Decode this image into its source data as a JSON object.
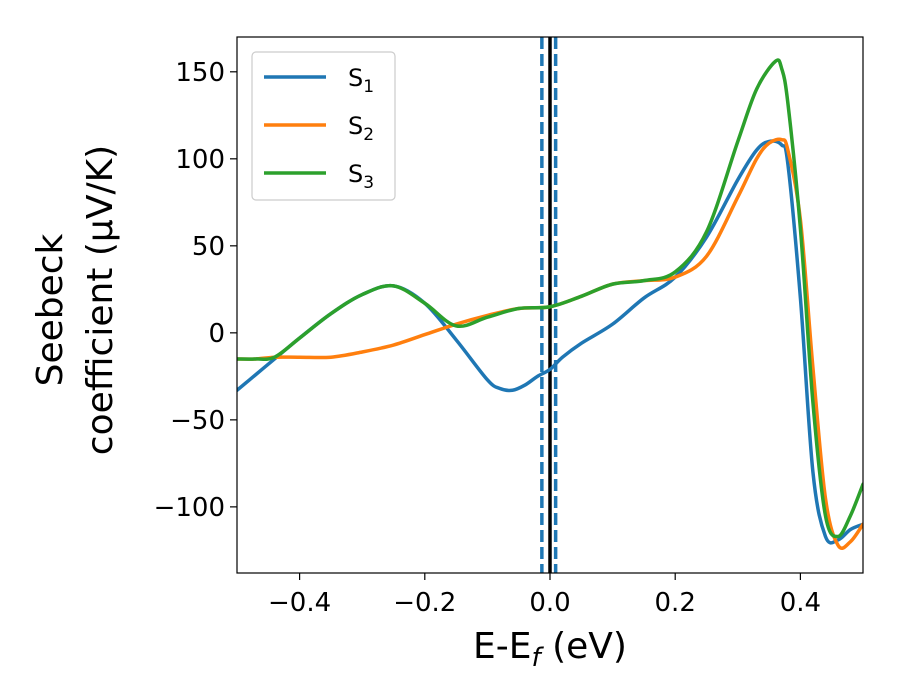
{
  "chart_data": {
    "type": "line",
    "title": "",
    "xlabel": "E-E",
    "xlabel_sub": "f",
    "xlabel_unit": " (eV)",
    "ylabel_line1": "Seebeck",
    "ylabel_line2": "coefficient  (μV/K)",
    "xlim": [
      -0.5,
      0.5
    ],
    "ylim": [
      -138,
      170
    ],
    "xticks": [
      -0.4,
      -0.2,
      0.0,
      0.2,
      0.4
    ],
    "xtick_labels": [
      "−0.4",
      "−0.2",
      "0.0",
      "0.2",
      "0.4"
    ],
    "yticks": [
      -100,
      -50,
      0,
      50,
      100,
      150
    ],
    "ytick_labels": [
      "−100",
      "−50",
      "0",
      "50",
      "100",
      "150"
    ],
    "grid": false,
    "legend_position": "top-left",
    "vertical_lines": [
      {
        "x": 0.0,
        "style": "solid",
        "color": "#000000"
      },
      {
        "x": -0.013,
        "style": "dashed",
        "color": "#1f77b4"
      },
      {
        "x": 0.009,
        "style": "dashed",
        "color": "#1f77b4"
      }
    ],
    "series": [
      {
        "name": "S",
        "name_sub": "1",
        "color": "#1f77b4",
        "x": [
          -0.5,
          -0.47,
          -0.44,
          -0.4,
          -0.35,
          -0.3,
          -0.25,
          -0.2,
          -0.15,
          -0.1,
          -0.08,
          -0.06,
          -0.04,
          -0.02,
          0.0,
          0.02,
          0.05,
          0.1,
          0.15,
          0.2,
          0.25,
          0.3,
          0.33,
          0.35,
          0.37,
          0.38,
          0.4,
          0.42,
          0.44,
          0.46,
          0.48,
          0.5
        ],
        "y": [
          -33,
          -24,
          -15,
          -3,
          11,
          22,
          27,
          17,
          -4,
          -27,
          -32,
          -33,
          -30,
          -25,
          -21,
          -14,
          -6,
          5,
          20,
          32,
          55,
          88,
          105,
          110,
          108,
          97,
          20,
          -80,
          -117,
          -119,
          -113,
          -110
        ]
      },
      {
        "name": "S",
        "name_sub": "2",
        "color": "#ff7f0e",
        "x": [
          -0.5,
          -0.47,
          -0.44,
          -0.4,
          -0.35,
          -0.3,
          -0.25,
          -0.2,
          -0.15,
          -0.1,
          -0.05,
          0.0,
          0.05,
          0.1,
          0.15,
          0.2,
          0.25,
          0.3,
          0.33,
          0.35,
          0.37,
          0.38,
          0.4,
          0.42,
          0.44,
          0.46,
          0.48,
          0.5
        ],
        "y": [
          -15,
          -15,
          -14,
          -14,
          -14,
          -11,
          -7,
          -1,
          5,
          10,
          14,
          15,
          21,
          28,
          30,
          32,
          44,
          78,
          100,
          109,
          111,
          105,
          65,
          -20,
          -95,
          -122,
          -120,
          -110
        ]
      },
      {
        "name": "S",
        "name_sub": "3",
        "color": "#2ca02c",
        "x": [
          -0.5,
          -0.47,
          -0.44,
          -0.4,
          -0.35,
          -0.3,
          -0.25,
          -0.2,
          -0.15,
          -0.1,
          -0.05,
          0.0,
          0.05,
          0.1,
          0.15,
          0.2,
          0.25,
          0.3,
          0.33,
          0.36,
          0.37,
          0.38,
          0.4,
          0.42,
          0.44,
          0.46,
          0.48,
          0.5
        ],
        "y": [
          -15,
          -15,
          -14,
          -3,
          11,
          22,
          27,
          17,
          4,
          9,
          14,
          15,
          21,
          28,
          30,
          35,
          58,
          110,
          140,
          156,
          152,
          132,
          60,
          -40,
          -105,
          -117,
          -105,
          -87
        ]
      }
    ]
  }
}
